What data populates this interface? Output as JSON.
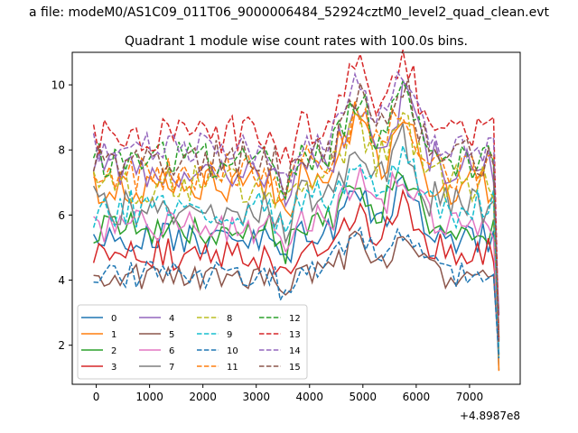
{
  "figure": {
    "suptitle": "a file: modeM0/AS1C09_011T06_9000006484_52924cztM0_level2_quad_clean.evt",
    "title": "Quadrant 1 module wise count rates with 100.0s bins."
  },
  "chart_data": {
    "type": "line",
    "title": "Quadrant 1 module wise count rates with 100.0s bins.",
    "xlabel": "",
    "ylabel": "",
    "xlim": [
      -450,
      7950
    ],
    "ylim": [
      0.8,
      11.0
    ],
    "x_offset_label": "+4.8987e8",
    "xticks": [
      0,
      1000,
      2000,
      3000,
      4000,
      5000,
      6000,
      7000
    ],
    "xtick_labels": [
      "0",
      "1000",
      "2000",
      "3000",
      "4000",
      "5000",
      "6000",
      "7000"
    ],
    "yticks": [
      2,
      4,
      6,
      8,
      10
    ],
    "ytick_labels": [
      "2",
      "4",
      "6",
      "8",
      "10"
    ],
    "grid": false,
    "legend_location": "lower-left",
    "legend_columns": 4,
    "series": [
      {
        "name": "0",
        "color": "#1f77b4",
        "dash": "solid",
        "base": 5.25,
        "amp": 0.25,
        "seed": 1
      },
      {
        "name": "1",
        "color": "#ff7f0e",
        "dash": "solid",
        "base": 6.9,
        "amp": 0.3,
        "seed": 2
      },
      {
        "name": "2",
        "color": "#2ca02c",
        "dash": "solid",
        "base": 5.6,
        "amp": 0.25,
        "seed": 3
      },
      {
        "name": "3",
        "color": "#d62728",
        "dash": "solid",
        "base": 4.8,
        "amp": 0.25,
        "seed": 4
      },
      {
        "name": "4",
        "color": "#9467bd",
        "dash": "solid",
        "base": 7.45,
        "amp": 0.3,
        "seed": 5
      },
      {
        "name": "5",
        "color": "#8c564b",
        "dash": "solid",
        "base": 4.05,
        "amp": 0.22,
        "seed": 6
      },
      {
        "name": "6",
        "color": "#e377c2",
        "dash": "solid",
        "base": 5.65,
        "amp": 0.25,
        "seed": 7
      },
      {
        "name": "7",
        "color": "#7f7f7f",
        "dash": "solid",
        "base": 6.3,
        "amp": 0.3,
        "seed": 8
      },
      {
        "name": "8",
        "color": "#bcbd22",
        "dash": "dashed",
        "base": 6.95,
        "amp": 0.3,
        "seed": 9
      },
      {
        "name": "9",
        "color": "#17becf",
        "dash": "dashed",
        "base": 6.2,
        "amp": 0.3,
        "seed": 10
      },
      {
        "name": "10",
        "color": "#1f77b4",
        "dash": "dashed",
        "base": 4.2,
        "amp": 0.22,
        "seed": 11
      },
      {
        "name": "11",
        "color": "#ff7f0e",
        "dash": "dashed",
        "base": 7.3,
        "amp": 0.3,
        "seed": 12
      },
      {
        "name": "12",
        "color": "#2ca02c",
        "dash": "dashed",
        "base": 7.65,
        "amp": 0.3,
        "seed": 13
      },
      {
        "name": "13",
        "color": "#d62728",
        "dash": "dashed",
        "base": 8.45,
        "amp": 0.3,
        "seed": 14
      },
      {
        "name": "14",
        "color": "#9467bd",
        "dash": "dashed",
        "base": 8.05,
        "amp": 0.25,
        "seed": 15
      },
      {
        "name": "15",
        "color": "#8c564b",
        "dash": "dashed",
        "base": 7.75,
        "amp": 0.3,
        "seed": 16
      }
    ],
    "x_start": -50,
    "x_end": 7550,
    "x_step": 100,
    "dip_at": 3550,
    "peaks": [
      {
        "x": 4900,
        "boost": 1.6
      },
      {
        "x": 5750,
        "boost": 1.9
      }
    ],
    "end_drop": {
      "x": 7550,
      "range": [
        1.2,
        3.0
      ]
    }
  }
}
